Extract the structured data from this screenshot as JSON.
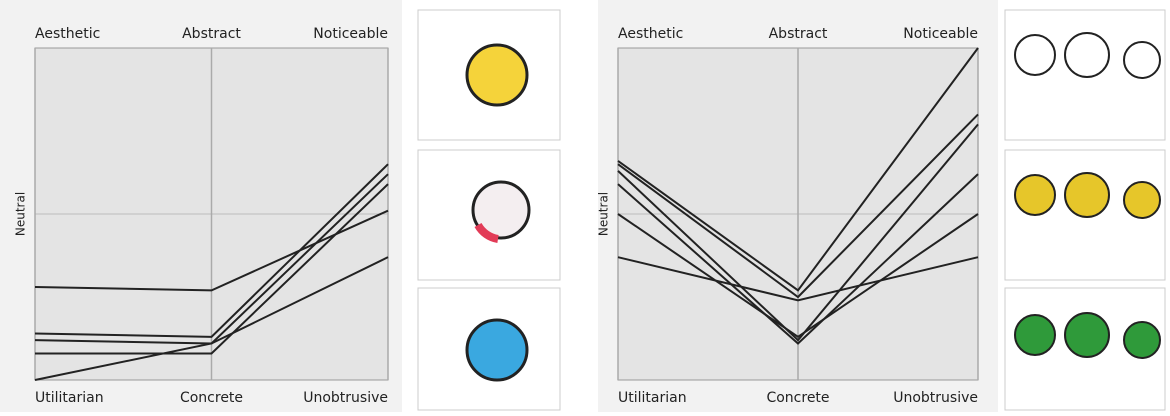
{
  "chart_data": [
    {
      "type": "parallel",
      "y_label": "Neutral",
      "top_labels": [
        "Aesthetic",
        "Abstract",
        "Noticeable"
      ],
      "bottom_labels": [
        "Utilitarian",
        "Concrete",
        "Unobtrusive"
      ],
      "ylim": [
        0,
        100
      ],
      "color": "#222222",
      "series": [
        {
          "values": [
            28,
            27,
            51
          ]
        },
        {
          "values": [
            14,
            13,
            65
          ]
        },
        {
          "values": [
            12,
            11,
            62
          ]
        },
        {
          "values": [
            8,
            8,
            59
          ]
        },
        {
          "values": [
            0,
            11,
            37
          ]
        }
      ]
    },
    {
      "type": "parallel",
      "y_label": "Neutral",
      "top_labels": [
        "Aesthetic",
        "Abstract",
        "Noticeable"
      ],
      "bottom_labels": [
        "Utilitarian",
        "Concrete",
        "Unobtrusive"
      ],
      "ylim": [
        0,
        100
      ],
      "color": "#222222",
      "series": [
        {
          "values": [
            66,
            27,
            100
          ]
        },
        {
          "values": [
            65,
            25,
            80
          ]
        },
        {
          "values": [
            63,
            12,
            77
          ]
        },
        {
          "values": [
            59,
            11,
            62
          ]
        },
        {
          "values": [
            50,
            13,
            50
          ]
        },
        {
          "values": [
            37,
            24,
            37
          ]
        }
      ]
    }
  ]
}
